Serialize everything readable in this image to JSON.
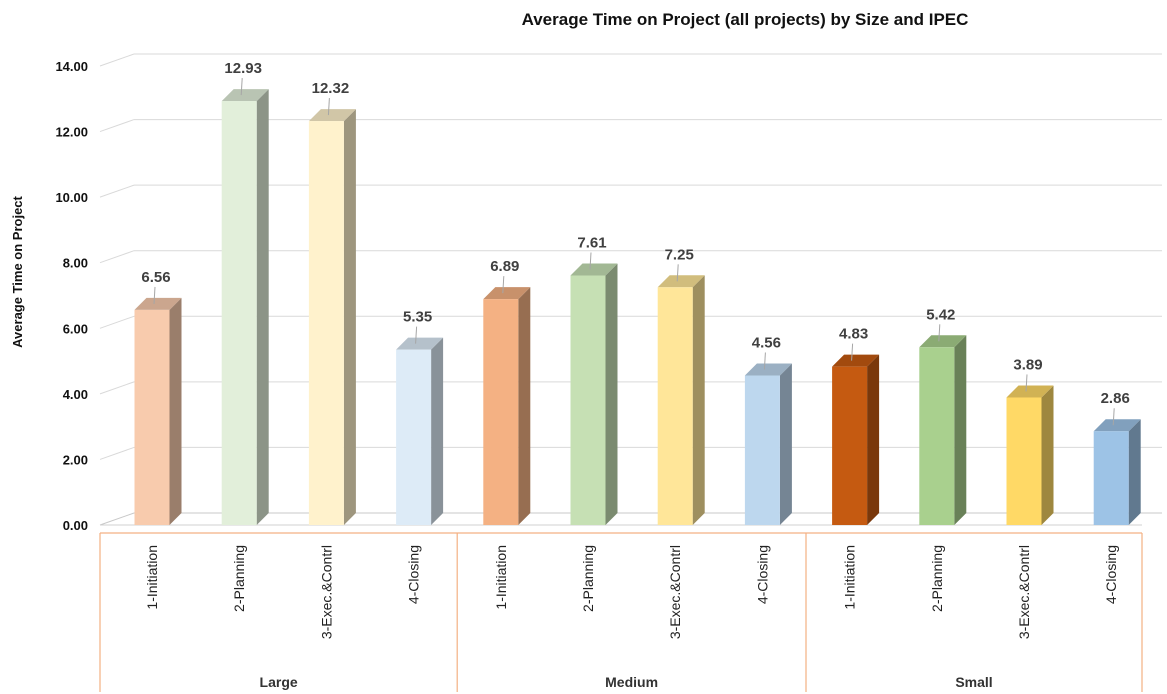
{
  "chart_data": {
    "type": "bar",
    "title": "Average Time on Project (all projects) by Size and IPEC",
    "ylabel": "Average Time on Project",
    "xlabel": "",
    "ylim": [
      0,
      14
    ],
    "ytick_step": 2,
    "ytick_labels": [
      "0.00",
      "2.00",
      "4.00",
      "6.00",
      "8.00",
      "10.00",
      "12.00",
      "14.00"
    ],
    "grid": true,
    "groups": [
      {
        "name": "Large",
        "categories": [
          "1-Initiation",
          "2-Planning",
          "3-Exec.&Contrl",
          "4-Closing"
        ],
        "values": [
          6.56,
          12.93,
          12.32,
          5.35
        ],
        "labels": [
          "6.56",
          "12.93",
          "12.32",
          "5.35"
        ],
        "colors": [
          "#F8CBAD",
          "#E2EFDA",
          "#FFF2CC",
          "#DDEBF7"
        ]
      },
      {
        "name": "Medium",
        "categories": [
          "1-Initiation",
          "2-Planning",
          "3-Exec.&Contrl",
          "4-Closing"
        ],
        "values": [
          6.89,
          7.61,
          7.25,
          4.56
        ],
        "labels": [
          "6.89",
          "7.61",
          "7.25",
          "4.56"
        ],
        "colors": [
          "#F4B183",
          "#C6E0B4",
          "#FFE699",
          "#BDD7EE"
        ]
      },
      {
        "name": "Small",
        "categories": [
          "1-Initiation",
          "2-Planning",
          "3-Exec.&Contrl",
          "4-Closing"
        ],
        "values": [
          4.83,
          5.42,
          3.89,
          2.86
        ],
        "labels": [
          "4.83",
          "5.42",
          "3.89",
          "2.86"
        ],
        "colors": [
          "#C55A11",
          "#A9D08E",
          "#FFD966",
          "#9DC3E6"
        ]
      }
    ]
  }
}
